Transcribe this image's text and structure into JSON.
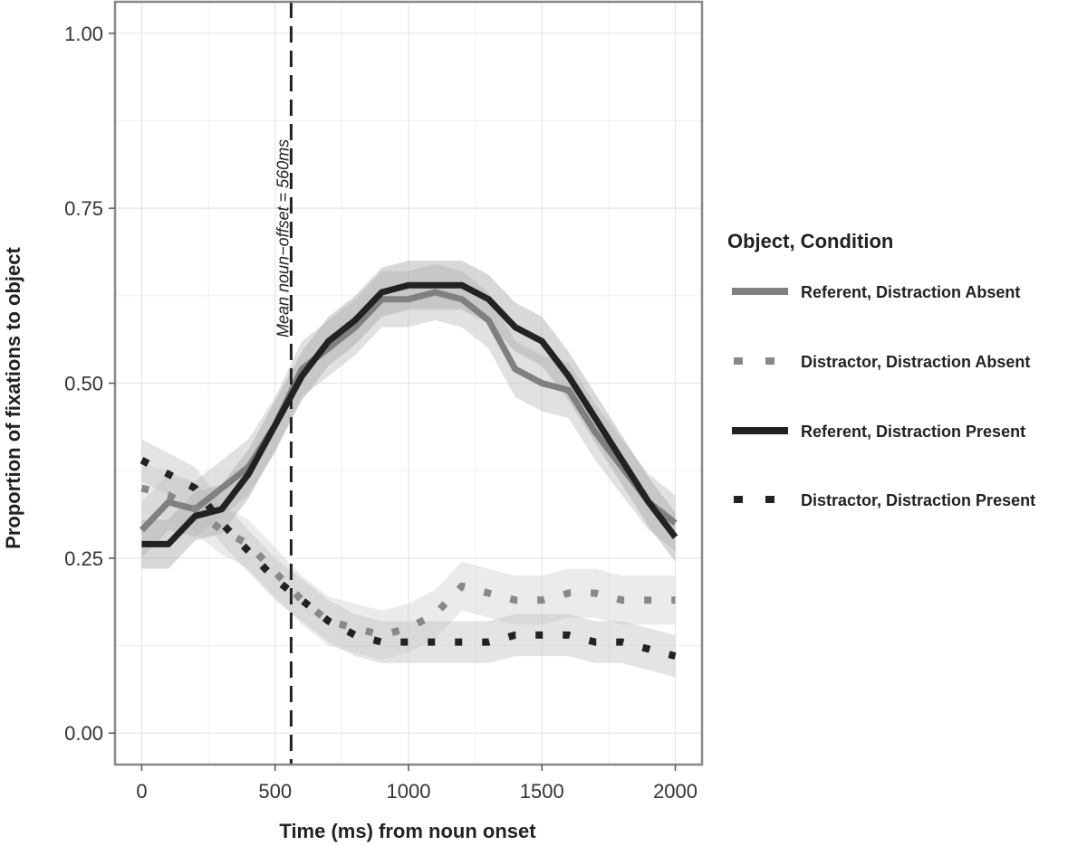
{
  "chart_data": {
    "type": "line",
    "xlabel": "Time (ms) from noun onset",
    "ylabel": "Proportion of fixations to object",
    "xlim": [
      -100,
      2100
    ],
    "ylim": [
      -0.045,
      1.045
    ],
    "xticks": [
      0,
      500,
      1000,
      1500,
      2000
    ],
    "xtick_labels": [
      "0",
      "500",
      "1000",
      "1500",
      "2000"
    ],
    "yticks": [
      0,
      0.25,
      0.5,
      0.75,
      1.0
    ],
    "ytick_labels": [
      "0.00",
      "0.25",
      "0.50",
      "0.75",
      "1.00"
    ],
    "grid": true,
    "legend": {
      "title": "Object, Condition",
      "position": "right"
    },
    "annotation": {
      "x": 560,
      "text": "Mean noun−offset = 560ms",
      "style": "dashed vertical line"
    },
    "x": [
      0,
      100,
      200,
      300,
      400,
      500,
      600,
      700,
      800,
      900,
      1000,
      1100,
      1200,
      1300,
      1400,
      1500,
      1600,
      1700,
      1800,
      1900,
      2000
    ],
    "series": [
      {
        "name": "Referent, Distraction Absent",
        "color": "#808080",
        "dash": "solid",
        "values": [
          0.29,
          0.33,
          0.32,
          0.35,
          0.38,
          0.44,
          0.52,
          0.55,
          0.58,
          0.62,
          0.62,
          0.63,
          0.62,
          0.59,
          0.52,
          0.5,
          0.49,
          0.43,
          0.38,
          0.33,
          0.3
        ],
        "band": 0.04
      },
      {
        "name": "Distractor, Distraction Absent",
        "color": "#888888",
        "dash": "dotted",
        "values": [
          0.35,
          0.34,
          0.32,
          0.29,
          0.27,
          0.23,
          0.19,
          0.16,
          0.15,
          0.14,
          0.15,
          0.17,
          0.21,
          0.2,
          0.19,
          0.19,
          0.2,
          0.2,
          0.19,
          0.19,
          0.19
        ],
        "band": 0.035
      },
      {
        "name": "Referent, Distraction Present",
        "color": "#222222",
        "dash": "solid",
        "values": [
          0.27,
          0.27,
          0.31,
          0.32,
          0.37,
          0.44,
          0.51,
          0.56,
          0.59,
          0.63,
          0.64,
          0.64,
          0.64,
          0.62,
          0.58,
          0.56,
          0.51,
          0.45,
          0.39,
          0.33,
          0.28
        ],
        "band": 0.035
      },
      {
        "name": "Distractor, Distraction Present",
        "color": "#222222",
        "dash": "dotted",
        "values": [
          0.39,
          0.37,
          0.35,
          0.3,
          0.26,
          0.22,
          0.19,
          0.16,
          0.14,
          0.13,
          0.13,
          0.13,
          0.13,
          0.13,
          0.14,
          0.14,
          0.14,
          0.13,
          0.13,
          0.12,
          0.11
        ],
        "band": 0.03
      }
    ]
  }
}
